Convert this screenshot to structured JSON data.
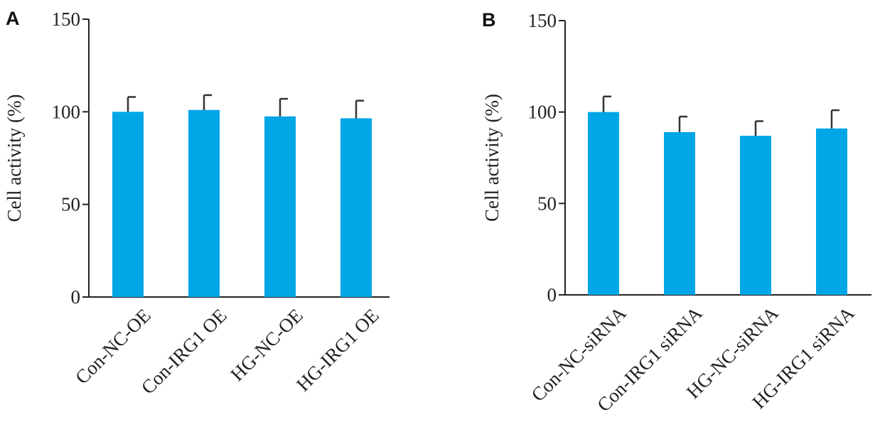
{
  "chart_data": [
    {
      "type": "bar",
      "panel_label": "A",
      "categories": [
        "Con-NC-OE",
        "Con-IRG1 OE",
        "HG-NC-OE",
        "HG-IRG1 OE"
      ],
      "values": [
        100,
        101,
        97.5,
        96.5
      ],
      "errors": [
        8,
        8,
        9.5,
        9.5
      ],
      "ylabel": "Cell activity (%)",
      "xlabel": "",
      "ylim": [
        0,
        150
      ],
      "yticks": [
        0,
        50,
        100,
        150
      ],
      "bar_color": "#00a6e6",
      "grid": false
    },
    {
      "type": "bar",
      "panel_label": "B",
      "categories": [
        "Con-NC-siRNA",
        "Con-IRG1 siRNA",
        "HG-NC-siRNA",
        "HG-IRG1 siRNA"
      ],
      "values": [
        100,
        89,
        87,
        91
      ],
      "errors": [
        8.5,
        8.5,
        8,
        10
      ],
      "ylabel": "Cell activity (%)",
      "xlabel": "",
      "ylim": [
        0,
        150
      ],
      "yticks": [
        0,
        50,
        100,
        150
      ],
      "bar_color": "#00a6e6",
      "grid": false
    }
  ]
}
